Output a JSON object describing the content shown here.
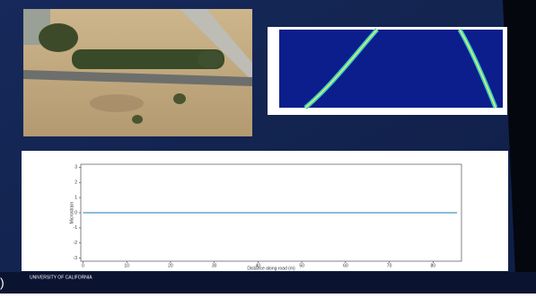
{
  "footer": "UNIVERSITY OF CALIFORNIA",
  "edge_mark": ")",
  "chart_data": {
    "type": "line",
    "ylabel": "Microstrain",
    "xlabel": "Distance along road (m)",
    "x": [
      0,
      85.5
    ],
    "series": [
      {
        "color": "#1f77b4",
        "values": [
          0,
          0
        ]
      }
    ],
    "xlim": [
      -0.5,
      86.5
    ],
    "xticks": [
      0,
      10,
      20,
      30,
      40,
      50,
      60,
      70,
      80
    ],
    "ylim": [
      -3.2,
      3.2
    ],
    "yticks": [
      -3,
      -2,
      -1,
      0,
      1,
      2,
      3
    ]
  }
}
